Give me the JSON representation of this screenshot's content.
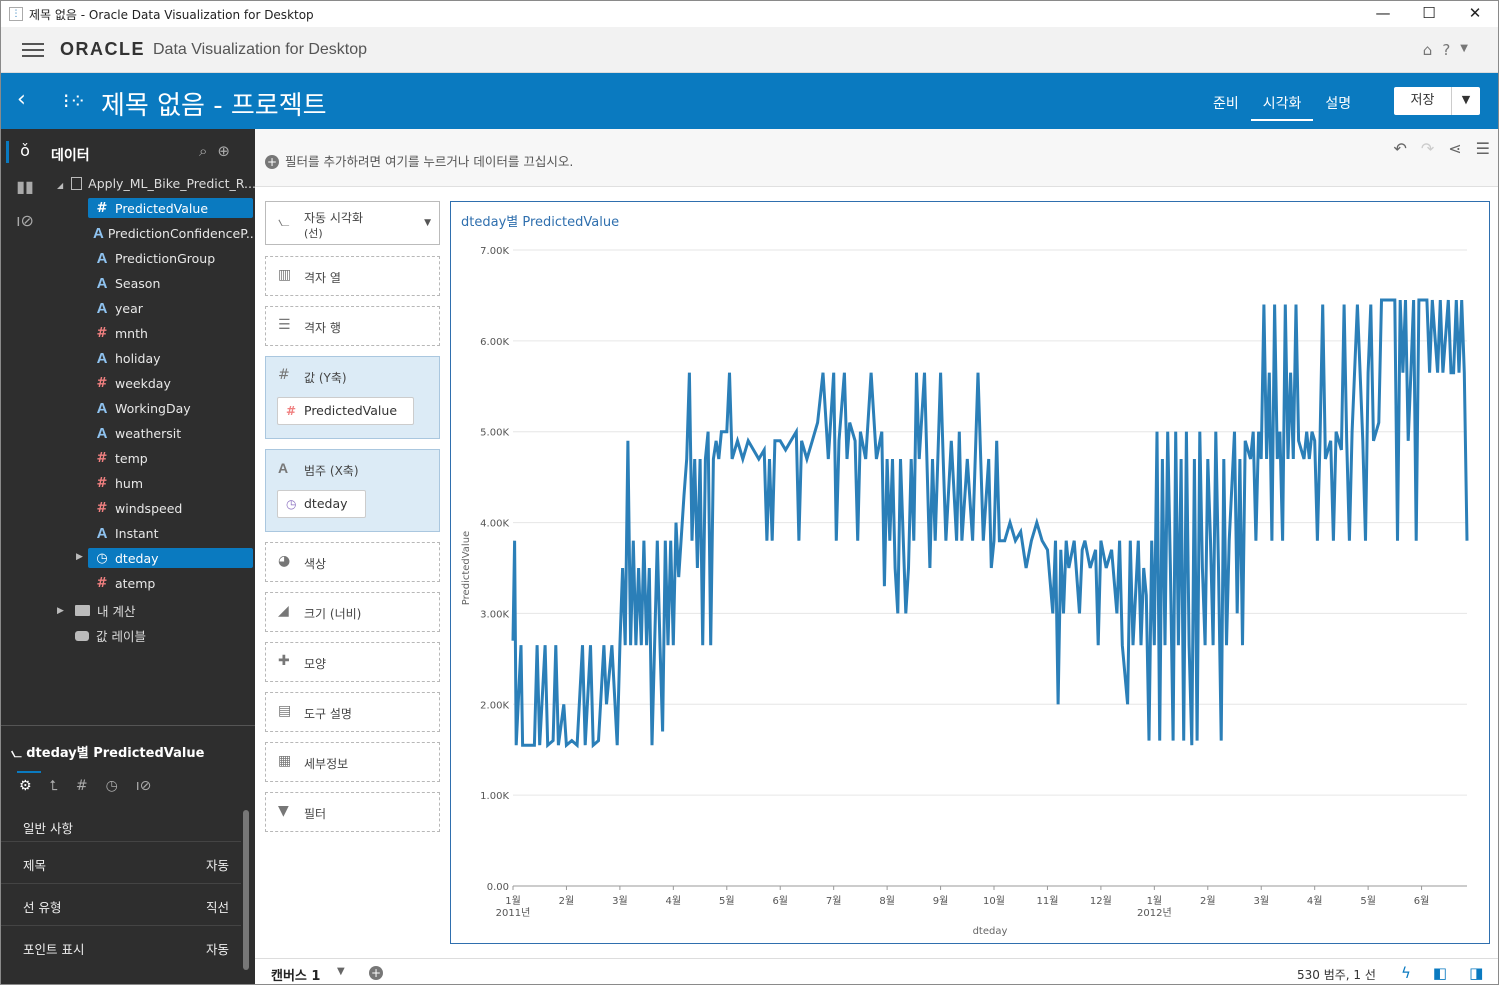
{
  "window": {
    "title": "제목 없음 - Oracle Data Visualization for Desktop",
    "minimize": "—",
    "maximize": "☐",
    "close": "✕"
  },
  "header": {
    "brand": "ORACLE",
    "product": "Data Visualization for Desktop"
  },
  "project": {
    "title": "제목 없음 - 프로젝트",
    "tabs": [
      "준비",
      "시각화",
      "설명"
    ],
    "active_tab": "시각화",
    "save_label": "저장"
  },
  "sidebar": {
    "data_label": "데이터",
    "dataset": "Apply_ML_Bike_Predict_R...",
    "fields": [
      {
        "name": "PredictedValue",
        "type": "number",
        "selected": true
      },
      {
        "name": "PredictionConfidenceP...",
        "type": "text"
      },
      {
        "name": "PredictionGroup",
        "type": "text"
      },
      {
        "name": "Season",
        "type": "text"
      },
      {
        "name": "year",
        "type": "text"
      },
      {
        "name": "mnth",
        "type": "number"
      },
      {
        "name": "holiday",
        "type": "text"
      },
      {
        "name": "weekday",
        "type": "number"
      },
      {
        "name": "WorkingDay",
        "type": "text"
      },
      {
        "name": "weathersit",
        "type": "text"
      },
      {
        "name": "temp",
        "type": "number"
      },
      {
        "name": "hum",
        "type": "number"
      },
      {
        "name": "windspeed",
        "type": "number"
      },
      {
        "name": "Instant",
        "type": "text"
      },
      {
        "name": "dteday",
        "type": "time",
        "selected": true
      },
      {
        "name": "atemp",
        "type": "number"
      }
    ],
    "my_calculations": "내 계산",
    "value_labels": "값 레이블"
  },
  "properties": {
    "title": "dteday별 PredictedValue",
    "general": "일반 사항",
    "rows": [
      {
        "key": "제목",
        "value": "자동"
      },
      {
        "key": "선 유형",
        "value": "직선"
      },
      {
        "key": "포인트 표시",
        "value": "자동"
      }
    ]
  },
  "filterbar": {
    "text": "필터를 추가하려면 여기를 누르거나 데이터를 끄십시오."
  },
  "grammar": {
    "viz_type": "자동 시각화",
    "viz_type_sub": "(선)",
    "trellis_columns": "격자 열",
    "trellis_rows": "격자 행",
    "values_y": "값 (Y축)",
    "values_y_field": "PredictedValue",
    "category_x": "범주 (X축)",
    "category_x_field": "dteday",
    "color": "색상",
    "size": "크기 (너비)",
    "shape": "모양",
    "tooltip": "도구 설명",
    "detail": "세부정보",
    "filter": "필터"
  },
  "chart_data": {
    "type": "line",
    "title": "dteday별 PredictedValue",
    "xlabel": "dteday",
    "ylabel": "PredictedValue",
    "ylim": [
      0,
      7000
    ],
    "yticks": [
      "0.00",
      "1.00K",
      "2.00K",
      "3.00K",
      "4.00K",
      "5.00K",
      "6.00K",
      "7.00K"
    ],
    "xticks": [
      "1월",
      "2월",
      "3월",
      "4월",
      "5월",
      "6월",
      "7월",
      "8월",
      "9월",
      "10월",
      "11월",
      "12월",
      "1월",
      "2월",
      "3월",
      "4월",
      "5월",
      "6월"
    ],
    "xtick_years": [
      {
        "index": 0,
        "label": "2011년"
      },
      {
        "index": 12,
        "label": "2012년"
      }
    ],
    "x_range_months": [
      0,
      17.85
    ],
    "series": [
      {
        "color": "#2b7fb8",
        "points": [
          [
            0.0,
            2700
          ],
          [
            0.03,
            3800
          ],
          [
            0.06,
            1550
          ],
          [
            0.15,
            2650
          ],
          [
            0.18,
            1550
          ],
          [
            0.4,
            1550
          ],
          [
            0.45,
            2650
          ],
          [
            0.5,
            1550
          ],
          [
            0.6,
            2650
          ],
          [
            0.65,
            1550
          ],
          [
            0.75,
            1600
          ],
          [
            0.8,
            2650
          ],
          [
            0.85,
            1550
          ],
          [
            0.95,
            2000
          ],
          [
            1.0,
            1550
          ],
          [
            1.1,
            1600
          ],
          [
            1.2,
            1550
          ],
          [
            1.3,
            2650
          ],
          [
            1.35,
            1550
          ],
          [
            1.45,
            2650
          ],
          [
            1.5,
            1550
          ],
          [
            1.6,
            1600
          ],
          [
            1.7,
            2650
          ],
          [
            1.75,
            2000
          ],
          [
            1.85,
            2650
          ],
          [
            1.95,
            1550
          ],
          [
            2.0,
            2650
          ],
          [
            2.05,
            3500
          ],
          [
            2.1,
            2650
          ],
          [
            2.15,
            4900
          ],
          [
            2.2,
            2650
          ],
          [
            2.25,
            3800
          ],
          [
            2.3,
            2650
          ],
          [
            2.35,
            3500
          ],
          [
            2.4,
            2650
          ],
          [
            2.45,
            3800
          ],
          [
            2.5,
            2650
          ],
          [
            2.55,
            3500
          ],
          [
            2.6,
            1550
          ],
          [
            2.65,
            2650
          ],
          [
            2.7,
            3800
          ],
          [
            2.75,
            2650
          ],
          [
            2.8,
            1700
          ],
          [
            2.85,
            3800
          ],
          [
            2.9,
            2650
          ],
          [
            2.95,
            3800
          ],
          [
            3.0,
            2650
          ],
          [
            3.05,
            4000
          ],
          [
            3.1,
            3400
          ],
          [
            3.2,
            4300
          ],
          [
            3.25,
            4700
          ],
          [
            3.3,
            5650
          ],
          [
            3.35,
            3800
          ],
          [
            3.4,
            4700
          ],
          [
            3.45,
            3500
          ],
          [
            3.5,
            4700
          ],
          [
            3.55,
            2650
          ],
          [
            3.6,
            4700
          ],
          [
            3.65,
            5000
          ],
          [
            3.7,
            2650
          ],
          [
            3.75,
            4700
          ],
          [
            3.8,
            4900
          ],
          [
            3.85,
            4700
          ],
          [
            3.9,
            5000
          ],
          [
            4.0,
            5000
          ],
          [
            4.05,
            5650
          ],
          [
            4.1,
            4700
          ],
          [
            4.2,
            4900
          ],
          [
            4.3,
            4700
          ],
          [
            4.4,
            4900
          ],
          [
            4.5,
            4800
          ],
          [
            4.6,
            4700
          ],
          [
            4.7,
            4800
          ],
          [
            4.75,
            3800
          ],
          [
            4.8,
            4700
          ],
          [
            4.85,
            3800
          ],
          [
            4.9,
            4900
          ],
          [
            5.0,
            4900
          ],
          [
            5.1,
            4800
          ],
          [
            5.2,
            4900
          ],
          [
            5.3,
            5000
          ],
          [
            5.35,
            3800
          ],
          [
            5.4,
            4900
          ],
          [
            5.5,
            4700
          ],
          [
            5.6,
            4900
          ],
          [
            5.7,
            5100
          ],
          [
            5.8,
            5650
          ],
          [
            5.9,
            4700
          ],
          [
            6.0,
            5650
          ],
          [
            6.05,
            3800
          ],
          [
            6.1,
            4900
          ],
          [
            6.2,
            5650
          ],
          [
            6.25,
            4700
          ],
          [
            6.3,
            5100
          ],
          [
            6.4,
            4900
          ],
          [
            6.45,
            3800
          ],
          [
            6.5,
            5000
          ],
          [
            6.6,
            4700
          ],
          [
            6.7,
            5650
          ],
          [
            6.8,
            4700
          ],
          [
            6.9,
            5000
          ],
          [
            6.95,
            3300
          ],
          [
            7.0,
            4700
          ],
          [
            7.05,
            3800
          ],
          [
            7.1,
            4700
          ],
          [
            7.15,
            3500
          ],
          [
            7.2,
            3000
          ],
          [
            7.25,
            4700
          ],
          [
            7.35,
            3000
          ],
          [
            7.4,
            3500
          ],
          [
            7.45,
            4700
          ],
          [
            7.5,
            3800
          ],
          [
            7.55,
            5650
          ],
          [
            7.6,
            4700
          ],
          [
            7.7,
            5650
          ],
          [
            7.8,
            3500
          ],
          [
            7.85,
            4700
          ],
          [
            7.9,
            3800
          ],
          [
            8.0,
            5650
          ],
          [
            8.05,
            4700
          ],
          [
            8.1,
            3800
          ],
          [
            8.2,
            4900
          ],
          [
            8.3,
            3800
          ],
          [
            8.35,
            5000
          ],
          [
            8.4,
            3800
          ],
          [
            8.5,
            4700
          ],
          [
            8.6,
            3800
          ],
          [
            8.7,
            5650
          ],
          [
            8.8,
            3800
          ],
          [
            8.9,
            4700
          ],
          [
            8.95,
            3500
          ],
          [
            9.0,
            3800
          ],
          [
            9.05,
            4900
          ],
          [
            9.1,
            3800
          ],
          [
            9.2,
            3800
          ],
          [
            9.3,
            4000
          ],
          [
            9.4,
            3800
          ],
          [
            9.5,
            3900
          ],
          [
            9.6,
            3500
          ],
          [
            9.7,
            3800
          ],
          [
            9.8,
            4000
          ],
          [
            9.9,
            3800
          ],
          [
            10.0,
            3700
          ],
          [
            10.1,
            3000
          ],
          [
            10.15,
            3800
          ],
          [
            10.2,
            2000
          ],
          [
            10.25,
            3700
          ],
          [
            10.3,
            3000
          ],
          [
            10.35,
            3800
          ],
          [
            10.4,
            3500
          ],
          [
            10.5,
            3800
          ],
          [
            10.6,
            3000
          ],
          [
            10.65,
            3700
          ],
          [
            10.7,
            3800
          ],
          [
            10.8,
            3500
          ],
          [
            10.9,
            3700
          ],
          [
            10.95,
            2650
          ],
          [
            11.0,
            3800
          ],
          [
            11.1,
            3500
          ],
          [
            11.2,
            3700
          ],
          [
            11.3,
            3000
          ],
          [
            11.35,
            3800
          ],
          [
            11.4,
            2650
          ],
          [
            11.5,
            2000
          ],
          [
            11.55,
            3800
          ],
          [
            11.6,
            2650
          ],
          [
            11.7,
            3800
          ],
          [
            11.75,
            2650
          ],
          [
            11.8,
            3500
          ],
          [
            11.85,
            3200
          ],
          [
            11.9,
            1600
          ],
          [
            11.95,
            3800
          ],
          [
            12.0,
            2650
          ],
          [
            12.05,
            5000
          ],
          [
            12.1,
            1600
          ],
          [
            12.15,
            4700
          ],
          [
            12.2,
            2650
          ],
          [
            12.25,
            5000
          ],
          [
            12.3,
            3500
          ],
          [
            12.35,
            1600
          ],
          [
            12.4,
            5000
          ],
          [
            12.45,
            2650
          ],
          [
            12.5,
            4700
          ],
          [
            12.55,
            1600
          ],
          [
            12.6,
            5000
          ],
          [
            12.65,
            2650
          ],
          [
            12.7,
            1550
          ],
          [
            12.75,
            4700
          ],
          [
            12.8,
            1600
          ],
          [
            12.85,
            5000
          ],
          [
            12.9,
            3500
          ],
          [
            12.95,
            2650
          ],
          [
            13.0,
            4700
          ],
          [
            13.05,
            3800
          ],
          [
            13.1,
            2650
          ],
          [
            13.15,
            5000
          ],
          [
            13.2,
            3500
          ],
          [
            13.25,
            1600
          ],
          [
            13.3,
            4700
          ],
          [
            13.35,
            2650
          ],
          [
            13.4,
            3800
          ],
          [
            13.5,
            5000
          ],
          [
            13.55,
            3000
          ],
          [
            13.6,
            4700
          ],
          [
            13.65,
            2650
          ],
          [
            13.7,
            4900
          ],
          [
            13.8,
            4700
          ],
          [
            13.85,
            5000
          ],
          [
            13.9,
            3800
          ],
          [
            13.95,
            5000
          ],
          [
            14.0,
            4700
          ],
          [
            14.05,
            6400
          ],
          [
            14.1,
            4700
          ],
          [
            14.15,
            5650
          ],
          [
            14.2,
            3800
          ],
          [
            14.25,
            6400
          ],
          [
            14.3,
            4700
          ],
          [
            14.35,
            5000
          ],
          [
            14.4,
            3800
          ],
          [
            14.45,
            6400
          ],
          [
            14.5,
            4700
          ],
          [
            14.55,
            5650
          ],
          [
            14.6,
            4700
          ],
          [
            14.65,
            6400
          ],
          [
            14.7,
            4900
          ],
          [
            14.8,
            4700
          ],
          [
            14.85,
            5000
          ],
          [
            14.9,
            4700
          ],
          [
            14.95,
            5000
          ],
          [
            15.0,
            4900
          ],
          [
            15.05,
            3800
          ],
          [
            15.1,
            4900
          ],
          [
            15.15,
            6400
          ],
          [
            15.2,
            4700
          ],
          [
            15.3,
            4900
          ],
          [
            15.35,
            3800
          ],
          [
            15.4,
            5000
          ],
          [
            15.5,
            4800
          ],
          [
            15.55,
            6400
          ],
          [
            15.6,
            4900
          ],
          [
            15.65,
            3800
          ],
          [
            15.7,
            5000
          ],
          [
            15.8,
            6400
          ],
          [
            15.9,
            4900
          ],
          [
            15.95,
            3800
          ],
          [
            16.0,
            5650
          ],
          [
            16.05,
            6400
          ],
          [
            16.1,
            4900
          ],
          [
            16.2,
            5100
          ],
          [
            16.25,
            6450
          ],
          [
            16.3,
            6450
          ],
          [
            16.5,
            6450
          ],
          [
            16.55,
            3800
          ],
          [
            16.6,
            6450
          ],
          [
            16.65,
            5650
          ],
          [
            16.7,
            6450
          ],
          [
            16.75,
            4900
          ],
          [
            16.8,
            5650
          ],
          [
            16.85,
            6450
          ],
          [
            16.9,
            3800
          ],
          [
            16.95,
            6450
          ],
          [
            17.1,
            6450
          ],
          [
            17.15,
            5650
          ],
          [
            17.2,
            6450
          ],
          [
            17.3,
            5650
          ],
          [
            17.35,
            6450
          ],
          [
            17.4,
            5650
          ],
          [
            17.5,
            6450
          ],
          [
            17.55,
            5650
          ],
          [
            17.6,
            5650
          ],
          [
            17.65,
            6450
          ],
          [
            17.7,
            5650
          ],
          [
            17.75,
            6450
          ],
          [
            17.8,
            5650
          ],
          [
            17.85,
            3800
          ]
        ]
      }
    ]
  },
  "status": {
    "canvas_tab": "캔버스 1",
    "summary": "530 범주, 1 선"
  }
}
